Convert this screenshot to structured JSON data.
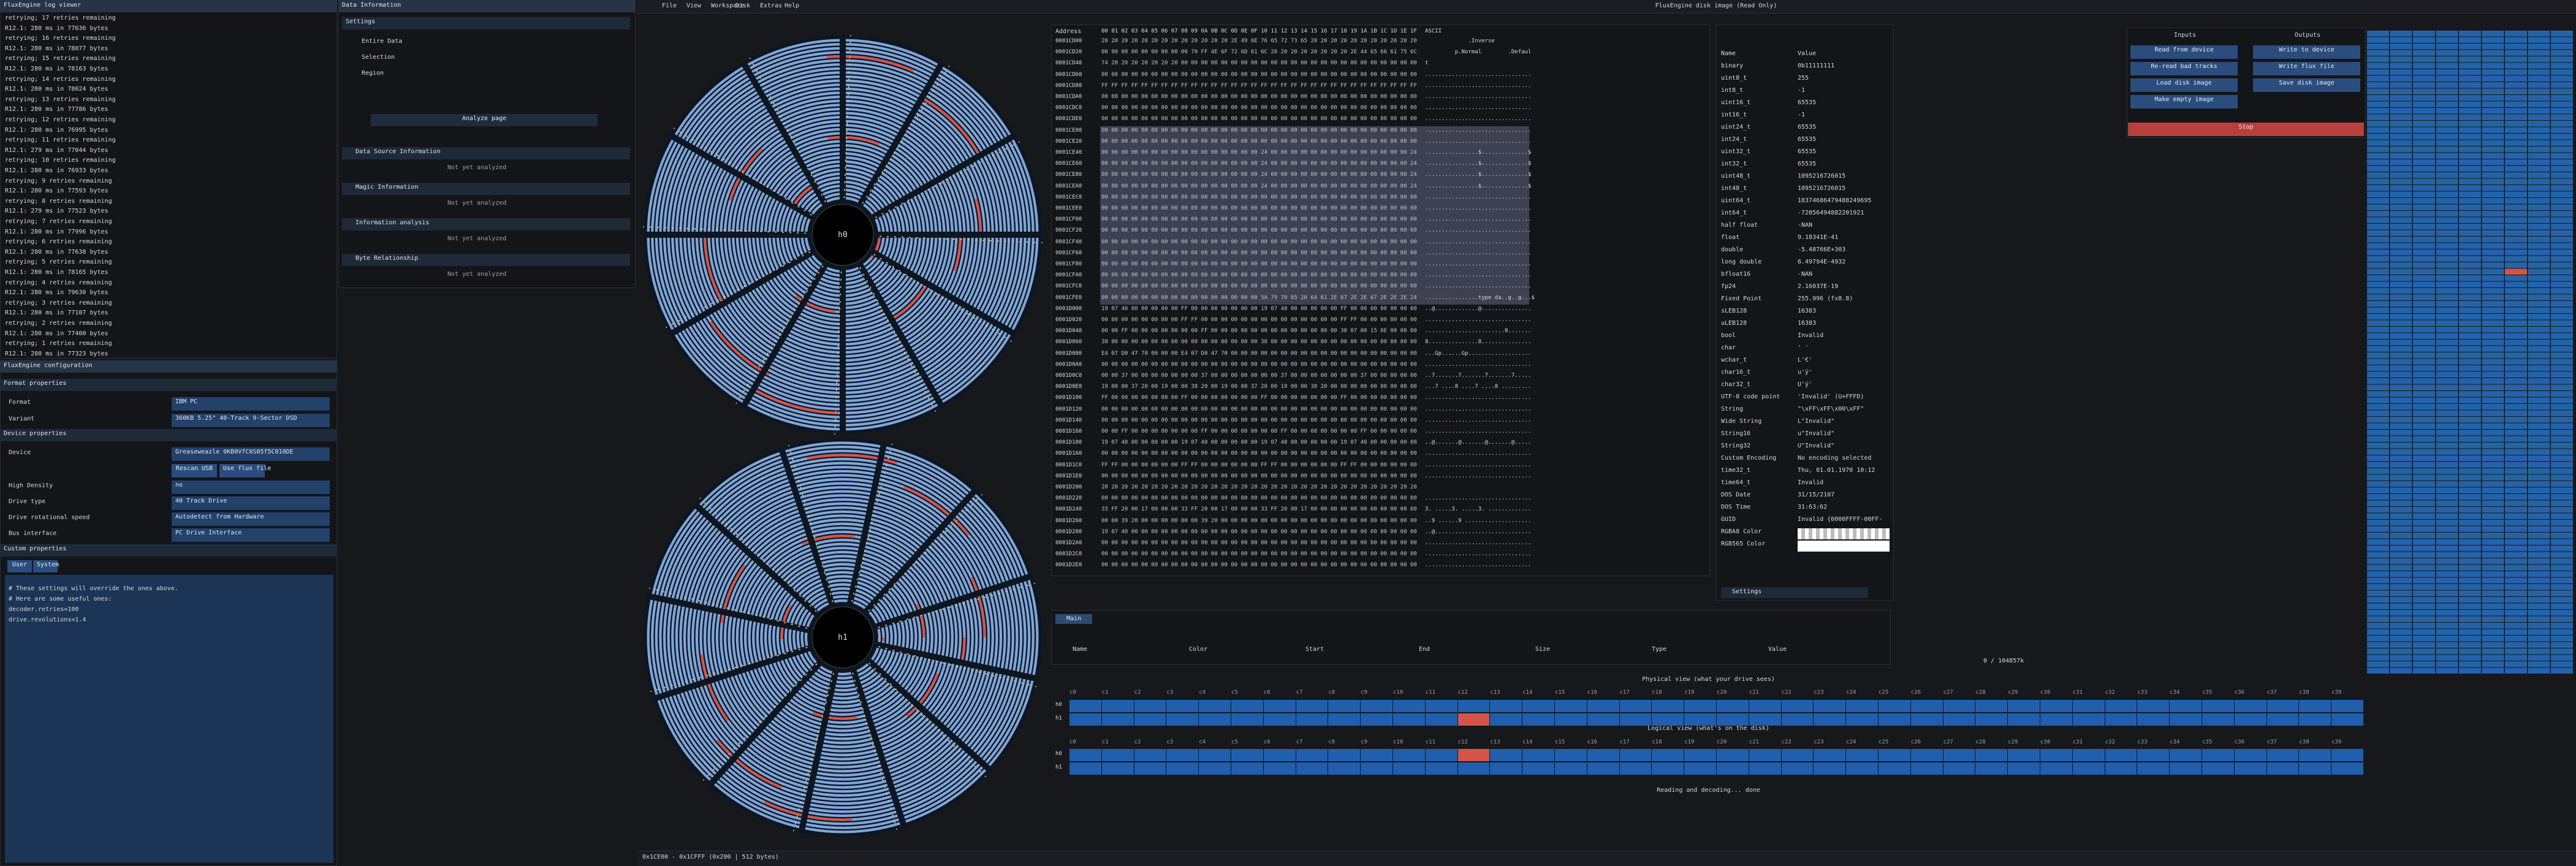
{
  "menu": {
    "items": [
      "File",
      "View",
      "Workspace",
      "Disk",
      "Extras",
      "Help"
    ],
    "title": "FluxEngine disk image (Read Only)"
  },
  "log_viewer": {
    "title": "FluxEngine log viewer",
    "lines": [
      "retrying; 17 retries remaining",
      "R12.1: 280 ms in 77636 bytes",
      "retrying; 16 retries remaining",
      "R12.1: 280 ms in 78077 bytes",
      "retrying; 15 retries remaining",
      "R12.1: 280 ms in 78163 bytes",
      "retrying; 14 retries remaining",
      "R12.1: 280 ms in 78024 bytes",
      "retrying; 13 retries remaining",
      "R12.1: 280 ms in 77786 bytes",
      "retrying; 12 retries remaining",
      "R12.1: 280 ms in 76995 bytes",
      "retrying; 11 retries remaining",
      "R12.1: 279 ms in 77044 bytes",
      "retrying; 10 retries remaining",
      "R12.1: 280 ms in 76933 bytes",
      "retrying; 9 retries remaining",
      "R12.1: 280 ms in 77593 bytes",
      "retrying; 8 retries remaining",
      "R12.1: 279 ms in 77523 bytes",
      "retrying; 7 retries remaining",
      "R12.1: 280 ms in 77996 bytes",
      "retrying; 6 retries remaining",
      "R12.1: 280 ms in 77638 bytes",
      "retrying; 5 retries remaining",
      "R12.1: 280 ms in 78165 bytes",
      "retrying; 4 retries remaining",
      "R12.1: 280 ms in 79630 bytes",
      "retrying; 3 retries remaining",
      "R12.1: 280 ms in 77107 bytes",
      "retrying; 2 retries remaining",
      "R12.1: 280 ms in 77400 bytes",
      "retrying; 1 retries remaining",
      "R12.1: 280 ms in 77323 bytes"
    ]
  },
  "config": {
    "title": "FluxEngine configuration",
    "format_header": "Format properties",
    "device_header": "Device properties",
    "custom_header": "Custom properties",
    "fields": [
      [
        "Format",
        "IBM PC"
      ],
      [
        "Variant",
        "360KB 5.25\" 40-Track 9-Sector DSD"
      ],
      [
        "Device",
        "Greaseweazle 0KB0VfC0S05f5C010DE"
      ],
      [
        "High Density",
        "no"
      ],
      [
        "Drive type",
        "40 Track Drive"
      ],
      [
        "Drive rotational speed",
        "Autodetect from Hardware"
      ],
      [
        "Bus interface",
        "PC Drive Interface"
      ]
    ],
    "buttons": [
      "Rescan USB",
      "Use flux file"
    ],
    "tabs": [
      "User",
      "System"
    ],
    "text": [
      "# These settings will override the ones above.",
      "# Here are some useful ones:",
      "decoder.retries=100",
      "drive.revolutions=1.4"
    ]
  },
  "data_information": {
    "title": "Data Information",
    "settings": "Settings",
    "options": [
      "Entire Data",
      "Selection",
      "Region"
    ],
    "analyze": "Analyze page",
    "sections": [
      "Data Source Information",
      "Magic Information",
      "Information analysis",
      "Byte Relationship"
    ],
    "status": "Not yet analyzed"
  },
  "disks": {
    "labels": [
      "h0",
      "h1"
    ]
  },
  "hex_editor": {
    "address": "Address",
    "columns": "00 01 02 03 04 05 06 07 08 09 0A 0B 0C 0D 0E 0F 10 11 12 13 14 15 16 17 18 19 1A 1B 1C 1D 1E 1F",
    "ascii": "ASCII",
    "rows": [
      [
        "0001CD00",
        "20 20 20 20 20 20 20 20 20 20 20 20 20 2E 49 6E 76 65 72 73 65 20 20 20 20 20 20 20 20 20 20 20",
        "             .Inverse           "
      ],
      [
        "0001CD20",
        "00 00 00 00 00 00 00 00 00 70 FF 4E 6F 72 6D 61 6C 20 20 20 20 20 20 20 20 2E 44 65 66 61 75 6C",
        "         p.Normal        .Defaul"
      ],
      [
        "0001CD40",
        "74 20 20 20 20 20 20 20 00 00 00 00 00 00 00 00 00 00 00 00 00 00 00 00 00 00 00 00 00 00 00 00",
        "t                               "
      ],
      [
        "0001CD60",
        "00 00 00 00 00 00 00 00 00 00 00 00 00 00 00 00 00 00 00 00 00 00 00 00 00 00 00 00 00 00 00 00",
        "................................"
      ],
      [
        "0001CD80",
        "FF FF FF FF FF FF FF FF FF FF FF FF FF FF FF FF FF FF FF FF FF FF FF FF FF FF FF FF FF FF FF FF",
        "................................"
      ],
      [
        "0001CDA0",
        "00 00 00 00 00 00 00 00 00 00 00 00 00 00 00 00 00 00 00 00 00 00 00 00 00 00 00 00 00 00 00 00",
        "................................"
      ],
      [
        "0001CDC0",
        "00 00 00 00 00 00 00 00 00 00 00 00 00 00 00 00 00 00 00 00 00 00 00 00 00 00 00 00 00 00 00 00",
        "................................"
      ],
      [
        "0001CDE0",
        "00 00 00 00 00 00 00 00 00 00 00 00 00 00 00 00 00 00 00 00 00 00 00 00 00 00 00 00 00 00 00 00",
        "................................"
      ],
      [
        "0001CE00",
        "00 00 00 00 00 00 00 00 00 00 00 00 00 00 00 00 00 00 00 00 00 00 00 00 00 00 00 00 00 00 00 00",
        "................................"
      ],
      [
        "0001CE20",
        "00 00 00 00 00 00 00 00 00 00 00 00 00 00 00 00 00 00 00 00 00 00 00 00 00 00 00 00 00 00 00 00",
        "................................"
      ],
      [
        "0001CE40",
        "00 00 00 00 00 00 00 00 00 00 00 00 00 00 00 00 24 00 00 00 00 00 00 00 00 00 00 00 00 00 00 24",
        "................$..............$"
      ],
      [
        "0001CE60",
        "00 00 00 00 00 00 00 00 00 00 00 00 00 00 00 00 24 00 00 00 00 00 00 00 00 00 00 00 00 00 00 24",
        "................$..............$"
      ],
      [
        "0001CE80",
        "00 00 00 00 00 00 00 00 00 00 00 00 00 00 00 00 24 00 00 00 00 00 00 00 00 00 00 00 00 00 00 24",
        "................$..............$"
      ],
      [
        "0001CEA0",
        "00 00 00 00 00 00 00 00 00 00 00 00 00 00 00 00 24 00 00 00 00 00 00 00 00 00 00 00 00 00 00 24",
        "................$..............$"
      ],
      [
        "0001CEC0",
        "00 00 00 00 00 00 00 00 00 00 00 00 00 00 00 00 00 00 00 00 00 00 00 00 00 00 00 00 00 00 00 00",
        "................................"
      ],
      [
        "0001CEE0",
        "00 00 00 00 00 00 00 00 00 00 00 00 00 00 00 00 00 00 00 00 00 00 00 00 00 00 00 00 00 00 00 00",
        "................................"
      ],
      [
        "0001CF00",
        "00 00 00 00 00 00 00 00 00 00 00 00 00 00 00 00 00 00 00 00 00 00 00 00 00 00 00 00 00 00 00 00",
        "................................"
      ],
      [
        "0001CF20",
        "00 00 00 00 00 00 00 00 00 00 00 00 00 00 00 00 00 00 00 00 00 00 00 00 00 00 00 00 00 00 00 00",
        "................................"
      ],
      [
        "0001CF40",
        "00 00 00 00 00 00 00 00 00 00 00 00 00 00 00 00 00 00 00 00 00 00 00 00 00 00 00 00 00 00 00 00",
        "................................"
      ],
      [
        "0001CF60",
        "00 00 00 00 00 00 00 00 00 00 00 00 00 00 00 00 00 00 00 00 00 00 00 00 00 00 00 00 00 00 00 00",
        "................................"
      ],
      [
        "0001CF80",
        "00 00 00 00 00 00 00 00 00 00 00 00 00 00 00 00 00 00 00 00 00 00 00 00 00 00 00 00 00 00 00 00",
        "................................"
      ],
      [
        "0001CFA0",
        "00 00 00 00 00 00 00 00 00 00 00 00 00 00 00 00 00 00 00 00 00 00 00 00 00 00 00 00 00 00 00 00",
        "................................"
      ],
      [
        "0001CFC0",
        "00 00 00 00 00 00 00 00 00 00 00 00 00 00 00 00 00 00 00 00 00 00 00 00 00 00 00 00 00 00 00 00",
        "................................"
      ],
      [
        "0001CFE0",
        "00 00 00 00 00 00 00 00 00 00 00 00 00 00 00 00 5A 79 70 65 20 64 61 2E 67 2E 2E 67 2E 2E 2E 24",
        "................type da..g..g...$"
      ],
      [
        "0001D000",
        "19 07 40 00 00 00 00 00 FF 00 00 00 00 00 00 00 19 07 40 00 00 00 00 00 FF 00 00 00 00 00 00 00",
        "..@.............@..............."
      ],
      [
        "0001D020",
        "00 00 00 00 00 00 00 00 FF FF 00 00 00 00 00 00 00 00 00 00 00 00 00 00 FF FF 00 00 00 00 00 00",
        "................................"
      ],
      [
        "0001D040",
        "00 00 FF 00 00 00 00 00 00 00 FF 00 00 00 00 00 00 00 00 00 00 00 00 00 38 07 00 15 0E 00 00 00",
        "........................8......."
      ],
      [
        "0001D060",
        "38 00 00 00 00 00 00 00 00 00 00 00 00 00 00 00 38 00 00 00 00 00 00 00 00 00 00 00 00 00 00 00",
        "8...............8..............."
      ],
      [
        "0001D080",
        "E4 07 D0 47 70 00 00 00 E4 07 D0 47 70 00 00 00 00 00 00 00 00 00 00 00 00 00 00 00 00 00 00 00",
        "...Gp......Gp..................."
      ],
      [
        "0001D0A0",
        "00 00 00 00 00 00 00 00 00 00 00 00 00 00 00 00 00 00 00 00 00 00 00 00 00 00 00 00 00 00 00 00",
        "................................"
      ],
      [
        "0001D0C0",
        "00 00 37 00 00 00 00 00 00 00 37 00 00 00 00 00 00 00 37 00 00 00 00 00 00 00 37 00 00 00 00 00",
        "..7.......7.......7.......7....."
      ],
      [
        "0001D0E0",
        "19 00 00 37 20 00 19 00 00 38 20 00 19 00 00 37 20 00 19 00 00 38 20 00 00 00 00 00 00 00 00 00",
        "...7 ....8 ....7 ....8 ........."
      ],
      [
        "0001D100",
        "FF 00 00 00 00 00 00 00 FF 00 00 00 00 00 00 00 FF 00 00 00 00 00 00 00 FF 00 00 00 00 00 00 00",
        "................................"
      ],
      [
        "0001D120",
        "00 00 00 00 00 00 00 00 00 00 00 00 00 00 00 00 00 00 00 00 00 00 00 00 00 00 00 00 00 00 00 00",
        "................................"
      ],
      [
        "0001D140",
        "00 00 00 00 00 00 00 00 00 00 00 00 00 00 00 00 00 00 00 00 00 00 00 00 00 00 00 00 00 00 00 00",
        "................................"
      ],
      [
        "0001D160",
        "00 00 FF 00 00 00 00 00 00 00 FF 00 00 00 00 00 00 00 FF 00 00 00 00 00 00 00 FF 00 00 00 00 00",
        "................................"
      ],
      [
        "0001D180",
        "19 07 40 00 00 00 00 00 19 07 40 00 00 00 00 00 19 07 40 00 00 00 00 00 19 07 40 00 00 00 00 00",
        "..@.......@.......@.......@....."
      ],
      [
        "0001D1A0",
        "00 00 00 00 00 00 00 00 00 00 00 00 00 00 00 00 00 00 00 00 00 00 00 00 00 00 00 00 00 00 00 00",
        "................................"
      ],
      [
        "0001D1C0",
        "FF FF 00 00 00 00 00 00 FF FF 00 00 00 00 00 00 FF FF 00 00 00 00 00 00 FF FF 00 00 00 00 00 00",
        "................................"
      ],
      [
        "0001D1E0",
        "00 00 00 00 00 00 00 00 00 00 00 00 00 00 00 00 00 00 00 00 00 00 00 00 00 00 00 00 00 00 00 00",
        "................................"
      ],
      [
        "0001D200",
        "20 20 20 20 20 20 20 20 20 20 20 20 20 20 20 20 20 20 20 20 20 20 20 20 20 20 20 20 20 20 20 20",
        "                                "
      ],
      [
        "0001D220",
        "00 00 00 00 00 00 00 00 00 00 00 00 00 00 00 00 00 00 00 00 00 00 00 00 00 00 00 00 00 00 00 00",
        "................................"
      ],
      [
        "0001D240",
        "33 FF 20 00 17 00 00 00 33 FF 20 00 17 00 00 00 33 FF 20 00 17 00 00 00 00 00 00 00 00 00 00 00",
        "3. .....3. .....3. ............."
      ],
      [
        "0001D260",
        "00 00 39 20 00 00 00 00 00 00 39 20 00 00 00 00 00 00 00 00 00 00 00 00 00 00 00 00 00 00 00 00",
        "..9 ......9 ...................."
      ],
      [
        "0001D280",
        "19 07 40 00 00 00 00 00 00 00 00 00 00 00 00 00 00 00 00 00 00 00 00 00 00 00 00 00 00 00 00 00",
        "..@............................."
      ],
      [
        "0001D2A0",
        "00 00 00 00 00 00 00 00 00 00 00 00 00 00 00 00 00 00 00 00 00 00 00 00 00 00 00 00 00 00 00 00",
        "................................"
      ],
      [
        "0001D2C0",
        "00 00 00 00 00 00 00 00 00 00 00 00 00 00 00 00 00 00 00 00 00 00 00 00 00 00 00 00 00 00 00 00",
        "................................"
      ],
      [
        "0001D2E0",
        "00 00 00 00 00 00 00 00 00 00 00 00 00 00 00 00 00 00 00 00 00 00 00 00 00 00 00 00 00 00 00 00",
        "................................"
      ]
    ]
  },
  "data_inspector": {
    "headers": [
      "Name",
      "Value"
    ],
    "settings": "Settings",
    "rows": [
      [
        "binary",
        "0b11111111"
      ],
      [
        "uint8_t",
        "255"
      ],
      [
        "int8_t",
        "-1"
      ],
      [
        "uint16_t",
        "65535"
      ],
      [
        "int16_t",
        "-1"
      ],
      [
        "uint24_t",
        "65535"
      ],
      [
        "int24_t",
        "65535"
      ],
      [
        "uint32_t",
        "65535"
      ],
      [
        "int32_t",
        "65535"
      ],
      [
        "uint48_t",
        "1095216726015"
      ],
      [
        "int48_t",
        "1095216726015"
      ],
      [
        "uint64_t",
        "18374686479488249695"
      ],
      [
        "int64_t",
        "-72056494882201921"
      ],
      [
        "half float",
        "-NAN"
      ],
      [
        "float",
        "9.18341E-41"
      ],
      [
        "double",
        "-5.48766E+303"
      ],
      [
        "long double",
        "6.49794E-4932"
      ],
      [
        "bfloat16",
        "-NAN"
      ],
      [
        "fp24",
        "2.16037E-19"
      ],
      [
        "Fixed Point",
        "255.996 (fx8.8)"
      ],
      [
        "sLEB128",
        "16383"
      ],
      [
        "uLEB128",
        "16383"
      ],
      [
        "bool",
        "Invalid"
      ],
      [
        "char",
        "' '"
      ],
      [
        "wchar_t",
        "L'€'"
      ],
      [
        "char16_t",
        "u'ÿ'"
      ],
      [
        "char32_t",
        "U'ÿ'"
      ],
      [
        "UTF-8 code point",
        "'Invalid' (U+FFFD)"
      ],
      [
        "String",
        "\"\\xFF\\xFF\\x00\\xFF\""
      ],
      [
        "Wide String",
        "L\"Invalid\""
      ],
      [
        "String16",
        "u\"Invalid\""
      ],
      [
        "String32",
        "U\"Invalid\""
      ],
      [
        "Custom Encoding",
        "No encoding selected"
      ],
      [
        "time32_t",
        "Thu, 01.01.1970 10:12"
      ],
      [
        "time64_t",
        "Invalid"
      ],
      [
        "DOS Date",
        "31/15/2107"
      ],
      [
        "DOS Time",
        "31:63:62"
      ],
      [
        "GUID",
        "Invalid {0000FFFF-00FF-"
      ],
      [
        "RGBA8 Color",
        ""
      ],
      [
        "RGB565 Color",
        ""
      ]
    ]
  },
  "pattern_table": {
    "tab": "Main",
    "headers": [
      "Name",
      "Color",
      "Start",
      "End",
      "Size",
      "Type",
      "Value"
    ]
  },
  "flux_controls": {
    "inputs": "Inputs",
    "outputs": "Outputs",
    "input_buttons": [
      "Read from device",
      "Re-read bad tracks",
      "Load disk image",
      "Make empty image"
    ],
    "output_buttons": [
      "Write to device",
      "Write flux file",
      "Save disk image"
    ],
    "stop": "Stop"
  },
  "search_count": "0 / 104857k",
  "track_map": {
    "physical_title": "Physical view (what your drive sees)",
    "logical_title": "Logical view (what's on the disk)",
    "rows": [
      "h0",
      "h1"
    ],
    "columns": [
      "c0",
      "c1",
      "c2",
      "c3",
      "c4",
      "c5",
      "c6",
      "c7",
      "c8",
      "c9",
      "c10",
      "c11",
      "c12",
      "c13",
      "c14",
      "c15",
      "c16",
      "c17",
      "c18",
      "c19",
      "c20",
      "c21",
      "c22",
      "c23",
      "c24",
      "c25",
      "c26",
      "c27",
      "c28",
      "c29",
      "c30",
      "c31",
      "c32",
      "c33",
      "c34",
      "c35",
      "c36",
      "c37",
      "c38",
      "c39"
    ],
    "status": "Reading and decoding... done"
  },
  "status_bar": "0x1CE00 - 0x1CFFF (0x200 | 512 bytes)"
}
